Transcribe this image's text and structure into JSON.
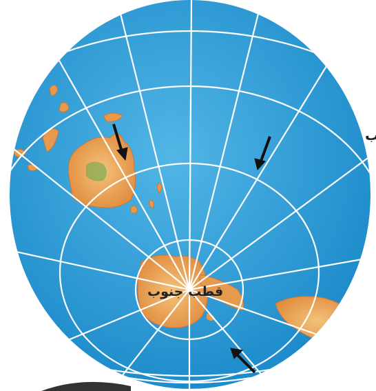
{
  "map": {
    "title": "",
    "pole_label": "قطب جنوب",
    "edge_text": "ب",
    "colors": {
      "ocean": "#2c9ed6",
      "land": "#e69a4d",
      "land_highlight": "#f3c27a",
      "graticule": "#ffffff",
      "arrow": "#111111"
    },
    "arrow_count": 3,
    "icons": [
      "south-pole-marker",
      "arrow-icon"
    ]
  }
}
